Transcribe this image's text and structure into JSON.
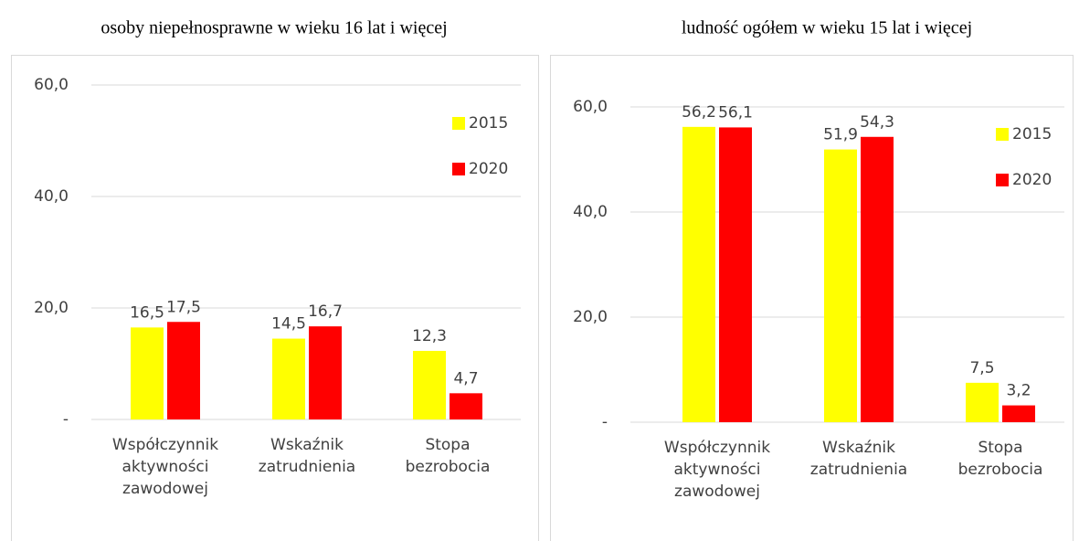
{
  "chart_data": [
    {
      "type": "bar",
      "title": "osoby niepełnosprawne w wieku 16 lat i więcej",
      "categories": [
        "Współczynnik aktywności zawodowej",
        "Wskaźnik zatrudnienia",
        "Stopa bezrobocia"
      ],
      "series": [
        {
          "name": "2015",
          "color": "#ffff00",
          "values": [
            16.5,
            14.5,
            12.3
          ],
          "value_labels": [
            "16,5",
            "14,5",
            "12,3"
          ]
        },
        {
          "name": "2020",
          "color": "#ff0000",
          "values": [
            17.5,
            16.7,
            4.7
          ],
          "value_labels": [
            "17,5",
            "16,7",
            "4,7"
          ]
        }
      ],
      "ylim": [
        0,
        60
      ],
      "yticks": [
        {
          "value": 0,
          "label": "-"
        },
        {
          "value": 20,
          "label": "20,0"
        },
        {
          "value": 40,
          "label": "40,0"
        },
        {
          "value": 60,
          "label": "60,0"
        }
      ],
      "grid": true,
      "legend": "upper right"
    },
    {
      "type": "bar",
      "title": "ludność ogółem w wieku 15 lat i więcej",
      "categories": [
        "Współczynnik aktywności zawodowej",
        "Wskaźnik zatrudnienia",
        "Stopa bezrobocia"
      ],
      "series": [
        {
          "name": "2015",
          "color": "#ffff00",
          "values": [
            56.2,
            51.9,
            7.5
          ],
          "value_labels": [
            "56,2",
            "51,9",
            "7,5"
          ]
        },
        {
          "name": "2020",
          "color": "#ff0000",
          "values": [
            56.1,
            54.3,
            3.2
          ],
          "value_labels": [
            "56,1",
            "54,3",
            "3,2"
          ]
        }
      ],
      "ylim": [
        0,
        60
      ],
      "yticks": [
        {
          "value": 0,
          "label": "-"
        },
        {
          "value": 20,
          "label": "20,0"
        },
        {
          "value": 40,
          "label": "40,0"
        },
        {
          "value": 60,
          "label": "60,0"
        }
      ],
      "grid": true,
      "legend": "upper right"
    }
  ]
}
